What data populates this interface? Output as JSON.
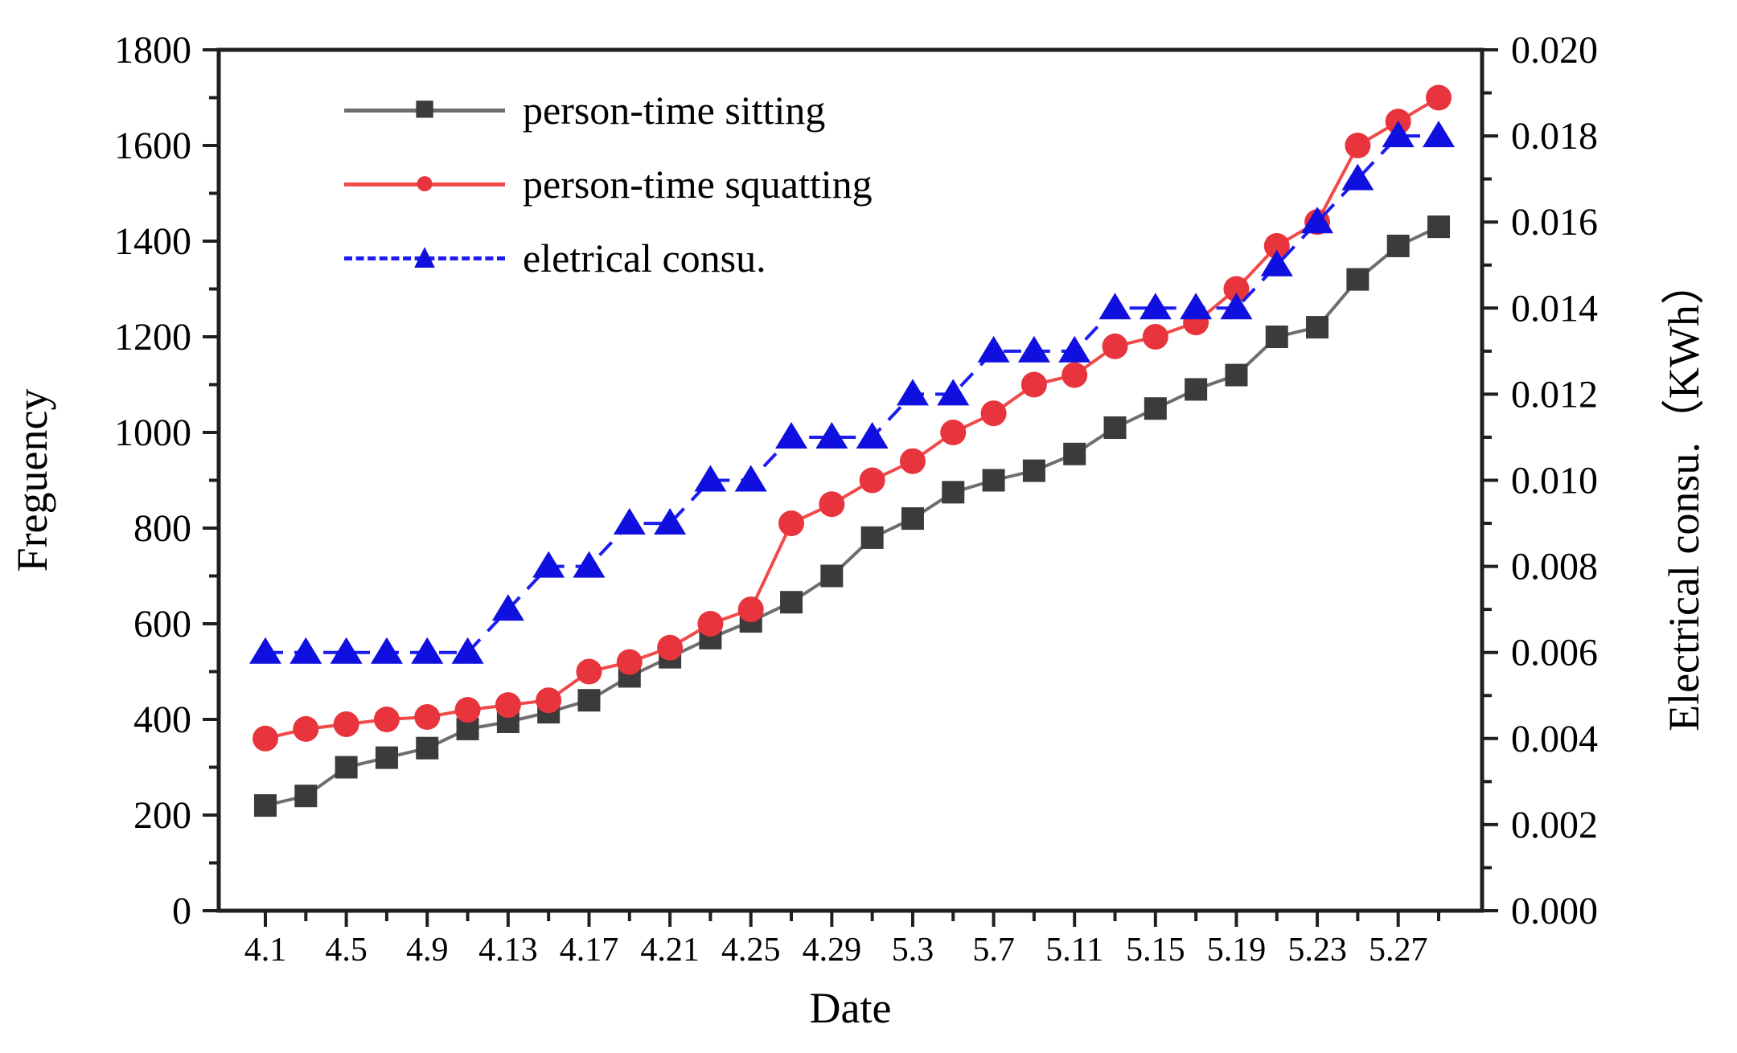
{
  "figure": {
    "background": "#ffffff"
  },
  "titles": {
    "x_axis": "Date",
    "y_left_axis": "Freguency",
    "y_right_axis": "Electrical consu.（KWh）"
  },
  "legend": {
    "position": "upper-left",
    "items": [
      {
        "label": "person-time sitting",
        "marker": "square",
        "line_style": "solid"
      },
      {
        "label": "person-time squatting",
        "marker": "circle",
        "line_style": "solid"
      },
      {
        "label": "eletrical consu.",
        "marker": "triangle",
        "line_style": "dashed"
      }
    ]
  },
  "chart_data": {
    "type": "line",
    "x": [
      "4.1",
      "4.3",
      "4.5",
      "4.7",
      "4.9",
      "4.11",
      "4.13",
      "4.15",
      "4.17",
      "4.19",
      "4.21",
      "4.23",
      "4.25",
      "4.27",
      "4.29",
      "5.1",
      "5.3",
      "5.5",
      "5.7",
      "5.9",
      "5.11",
      "5.13",
      "5.15",
      "5.17",
      "5.19",
      "5.21",
      "5.23",
      "5.25",
      "5.27",
      "5.29"
    ],
    "x_tick_labels": [
      "4.1",
      "",
      "4.5",
      "",
      "4.9",
      "",
      "4.13",
      "",
      "4.17",
      "",
      "4.21",
      "",
      "4.25",
      "",
      "4.29",
      "",
      "5.3",
      "",
      "5.7",
      "",
      "5.11",
      "",
      "5.15",
      "",
      "5.19",
      "",
      "5.23",
      "",
      "5.27",
      ""
    ],
    "xlabel": "Date",
    "ylabel_left": "Freguency",
    "ylabel_right": "Electrical consu.（KWh）",
    "ylim_left": [
      0,
      1800
    ],
    "ylim_right": [
      0.0,
      0.02
    ],
    "left_major_step": 200,
    "left_minor_step": 100,
    "right_major_step": 0.002,
    "right_minor_step": 0.001,
    "left_tick_labels": [
      "0",
      "200",
      "400",
      "600",
      "800",
      "1000",
      "1200",
      "1400",
      "1600",
      "1800"
    ],
    "right_tick_labels": [
      "0.000",
      "0.002",
      "0.004",
      "0.006",
      "0.008",
      "0.010",
      "0.012",
      "0.014",
      "0.016",
      "0.018",
      "0.020"
    ],
    "grid": false,
    "legend_position": "upper-left",
    "series": [
      {
        "name": "person-time sitting",
        "axis": "left",
        "marker": "square",
        "line_style": "solid",
        "line_color": "#6e6e6e",
        "marker_color": "#3b3b3b",
        "values": [
          220,
          240,
          300,
          320,
          340,
          380,
          395,
          415,
          440,
          490,
          530,
          570,
          605,
          645,
          700,
          780,
          820,
          875,
          900,
          920,
          955,
          1010,
          1050,
          1090,
          1120,
          1200,
          1220,
          1320,
          1390,
          1430
        ]
      },
      {
        "name": "person-time squatting",
        "axis": "left",
        "marker": "circle",
        "line_style": "solid",
        "line_color": "#f04a4a",
        "marker_color": "#e8343c",
        "values": [
          360,
          380,
          390,
          400,
          405,
          420,
          430,
          440,
          500,
          520,
          550,
          600,
          630,
          810,
          850,
          900,
          940,
          1000,
          1040,
          1100,
          1120,
          1180,
          1200,
          1230,
          1300,
          1390,
          1440,
          1600,
          1650,
          1700
        ]
      },
      {
        "name": "eletrical consu.",
        "axis": "right",
        "marker": "triangle",
        "line_style": "dashed",
        "line_color": "#1d1df0",
        "marker_color": "#0f0fe0",
        "values": [
          0.006,
          0.006,
          0.006,
          0.006,
          0.006,
          0.006,
          0.007,
          0.008,
          0.008,
          0.009,
          0.009,
          0.01,
          0.01,
          0.011,
          0.011,
          0.011,
          0.012,
          0.012,
          0.013,
          0.013,
          0.013,
          0.014,
          0.014,
          0.014,
          0.014,
          0.015,
          0.016,
          0.017,
          0.018,
          0.018
        ]
      }
    ]
  }
}
